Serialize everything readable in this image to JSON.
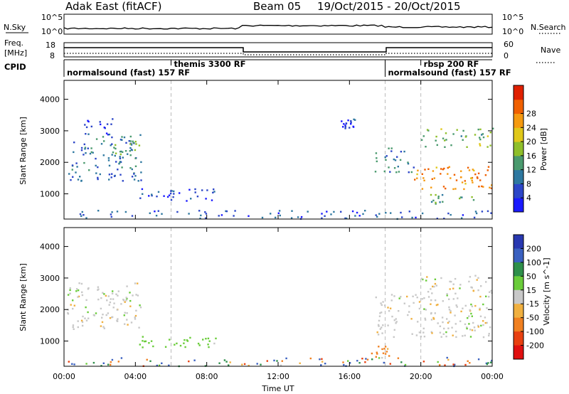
{
  "header": {
    "radar": "Adak East (fitACF)",
    "beam": "Beam 05",
    "daterange": "19/Oct/2015 - 20/Oct/2015"
  },
  "noise_panel": {
    "left_label": "N.Sky",
    "right_label": "N.Search",
    "left_ticks": [
      "10^5",
      "10^0"
    ],
    "right_ticks": [
      "10^5",
      "10^0"
    ]
  },
  "freq_panel": {
    "left_label_1": "Freq.",
    "left_label_2": "[MHz]",
    "right_label": "Nave",
    "left_ticks": [
      "18",
      "8"
    ],
    "right_ticks": [
      "60",
      "0"
    ]
  },
  "cpid": {
    "label": "CPID",
    "segments": [
      {
        "start": 0,
        "end": 6,
        "label": "normalsound (fast) 157 RF",
        "row": "lower"
      },
      {
        "start": 6,
        "end": 18,
        "label": "themis 3300 RF",
        "row": "upper"
      },
      {
        "start": 18,
        "end": 20,
        "label": "normalsound (fast) 157 RF",
        "row": "lower"
      },
      {
        "start": 20,
        "end": 24,
        "label": "rbsp 200 RF",
        "row": "upper"
      }
    ]
  },
  "x_axis": {
    "label": "Time UT",
    "ticks": [
      "00:00",
      "04:00",
      "08:00",
      "12:00",
      "16:00",
      "20:00",
      "00:00"
    ]
  },
  "chart_data": [
    {
      "type": "heatmap",
      "title": "Power",
      "xlabel": "Time UT",
      "ylabel": "Slant Range [km]",
      "x_range_hours": [
        0,
        24
      ],
      "ylim": [
        200,
        4600
      ],
      "y_ticks": [
        "1000",
        "2000",
        "3000",
        "4000"
      ],
      "colorbar": {
        "label": "Power [dB]",
        "ticks": [
          "4",
          "8",
          "12",
          "16",
          "20",
          "24",
          "28"
        ],
        "colors": [
          "#1a1aff",
          "#2c46c8",
          "#2e78a0",
          "#4a9a6e",
          "#8fbf2a",
          "#e0c81a",
          "#f59a10",
          "#f06000",
          "#e02000"
        ]
      },
      "regions": [
        {
          "t": [
            0.1,
            4.3
          ],
          "r": [
            1400,
            2900
          ],
          "v": 10
        },
        {
          "t": [
            2.8,
            4.2
          ],
          "r": [
            1800,
            2700
          ],
          "v": 15
        },
        {
          "t": [
            1.0,
            2.8
          ],
          "r": [
            2900,
            3400
          ],
          "v": 6
        },
        {
          "t": [
            4.2,
            8.5
          ],
          "r": [
            800,
            1200
          ],
          "v": 7
        },
        {
          "t": [
            17.4,
            19.6
          ],
          "r": [
            1700,
            2500
          ],
          "v": 12
        },
        {
          "t": [
            19.6,
            24.0
          ],
          "r": [
            1150,
            1900
          ],
          "v": 25
        },
        {
          "t": [
            20.0,
            24.0
          ],
          "r": [
            2500,
            3100
          ],
          "v": 16
        },
        {
          "t": [
            20.5,
            23.0
          ],
          "r": [
            700,
            1000
          ],
          "v": 14
        },
        {
          "t": [
            15.5,
            16.3
          ],
          "r": [
            3100,
            3400
          ],
          "v": 6
        },
        {
          "t": [
            0.0,
            24.0
          ],
          "r": [
            200,
            500
          ],
          "v": 8
        }
      ]
    },
    {
      "type": "heatmap",
      "title": "Velocity",
      "xlabel": "Time UT",
      "ylabel": "Slant Range [km]",
      "x_range_hours": [
        0,
        24
      ],
      "ylim": [
        200,
        4600
      ],
      "y_ticks": [
        "1000",
        "2000",
        "3000",
        "4000"
      ],
      "colorbar": {
        "label": "Velocity [m s^-1]",
        "ticks": [
          "200",
          "100",
          "50",
          "15",
          "-15",
          "-50",
          "-100",
          "-200"
        ],
        "colors": [
          "#2838b0",
          "#3a60c0",
          "#2e8f4a",
          "#6acc3a",
          "#c8c8c8",
          "#f0b040",
          "#f08020",
          "#e84010",
          "#e01010"
        ]
      },
      "regions": [
        {
          "t": [
            0.1,
            4.3
          ],
          "r": [
            1400,
            2900
          ],
          "v": 0
        },
        {
          "t": [
            4.2,
            8.5
          ],
          "r": [
            800,
            1200
          ],
          "v": 30
        },
        {
          "t": [
            17.4,
            24.0
          ],
          "r": [
            1150,
            2500
          ],
          "v": 0
        },
        {
          "t": [
            20.0,
            24.0
          ],
          "r": [
            2500,
            3100
          ],
          "v": 0
        },
        {
          "t": [
            17.2,
            18.2
          ],
          "r": [
            500,
            900
          ],
          "v": -60
        },
        {
          "t": [
            0.0,
            24.0
          ],
          "r": [
            200,
            500
          ],
          "v": -30
        }
      ]
    }
  ]
}
